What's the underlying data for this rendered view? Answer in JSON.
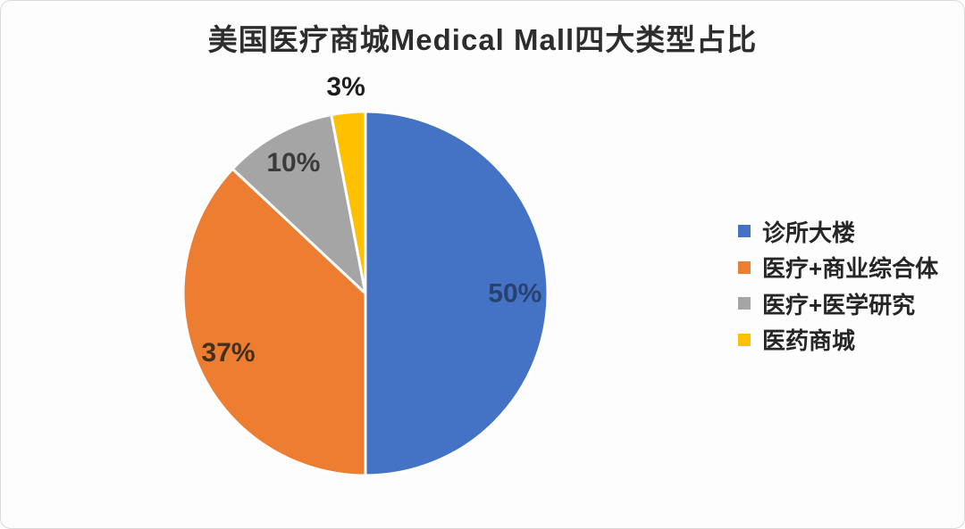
{
  "title": "美国医疗商城Medical Mall四大类型占比",
  "chart_data": {
    "type": "pie",
    "title": "美国医疗商城Medical Mall四大类型占比",
    "categories": [
      "诊所大楼",
      "医疗+商业综合体",
      "医疗+医学研究",
      "医药商城"
    ],
    "values": [
      50,
      37,
      10,
      3
    ],
    "unit": "percent",
    "data_labels": [
      "50%",
      "37%",
      "10%",
      "3%"
    ],
    "colors": [
      "#4472C4",
      "#ED7D31",
      "#A5A5A5",
      "#FFC000"
    ],
    "label_colors": [
      "#28426f",
      "#44301d",
      "#3b3b3b",
      "#1e1e1e"
    ],
    "label_inside": [
      true,
      true,
      true,
      false
    ],
    "start_angle": "12-oclock",
    "direction": "clockwise",
    "legend_position": "right",
    "slice_border_color": "#ffffff"
  }
}
